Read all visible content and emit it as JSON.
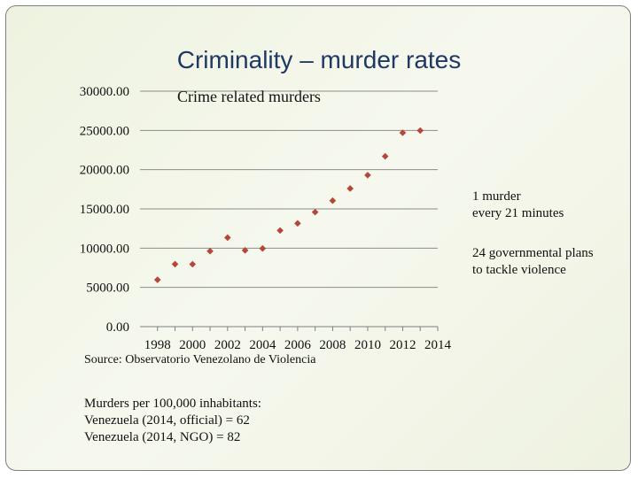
{
  "slide": {
    "title": "Criminality – murder rates"
  },
  "chart_data": {
    "type": "scatter",
    "title": "Crime related murders",
    "xlabel": "",
    "ylabel": "",
    "x": [
      1998,
      1999,
      2000,
      2001,
      2002,
      2003,
      2004,
      2005,
      2006,
      2007,
      2008,
      2009,
      2010,
      2011,
      2012,
      2013
    ],
    "y": [
      5970,
      7960,
      7950,
      9620,
      11340,
      9720,
      9960,
      12250,
      13160,
      14590,
      16050,
      17600,
      19300,
      21700,
      24700,
      24980
    ],
    "xticks": [
      "1998",
      "2000",
      "2002",
      "2004",
      "2006",
      "2008",
      "2010",
      "2012",
      "2014"
    ],
    "yticks": [
      "0.00",
      "5000.00",
      "10000.00",
      "15000.00",
      "20000.00",
      "25000.00",
      "30000.00"
    ],
    "ylim": [
      0,
      30000
    ],
    "grid": true,
    "legend": "none",
    "marker_color": "#b5473a"
  },
  "source": "Source: Observatorio Venezolano de Violencia",
  "notes": {
    "heading": "Murders per 100,000 inhabitants:",
    "lines": [
      "Venezuela (2014,  official) = 62",
      "Venezuela (2014,  NGO) = 82"
    ]
  },
  "side_notes": [
    [
      "1 murder",
      "every 21 minutes"
    ],
    [
      "24 governmental plans",
      "to tackle violence"
    ]
  ]
}
